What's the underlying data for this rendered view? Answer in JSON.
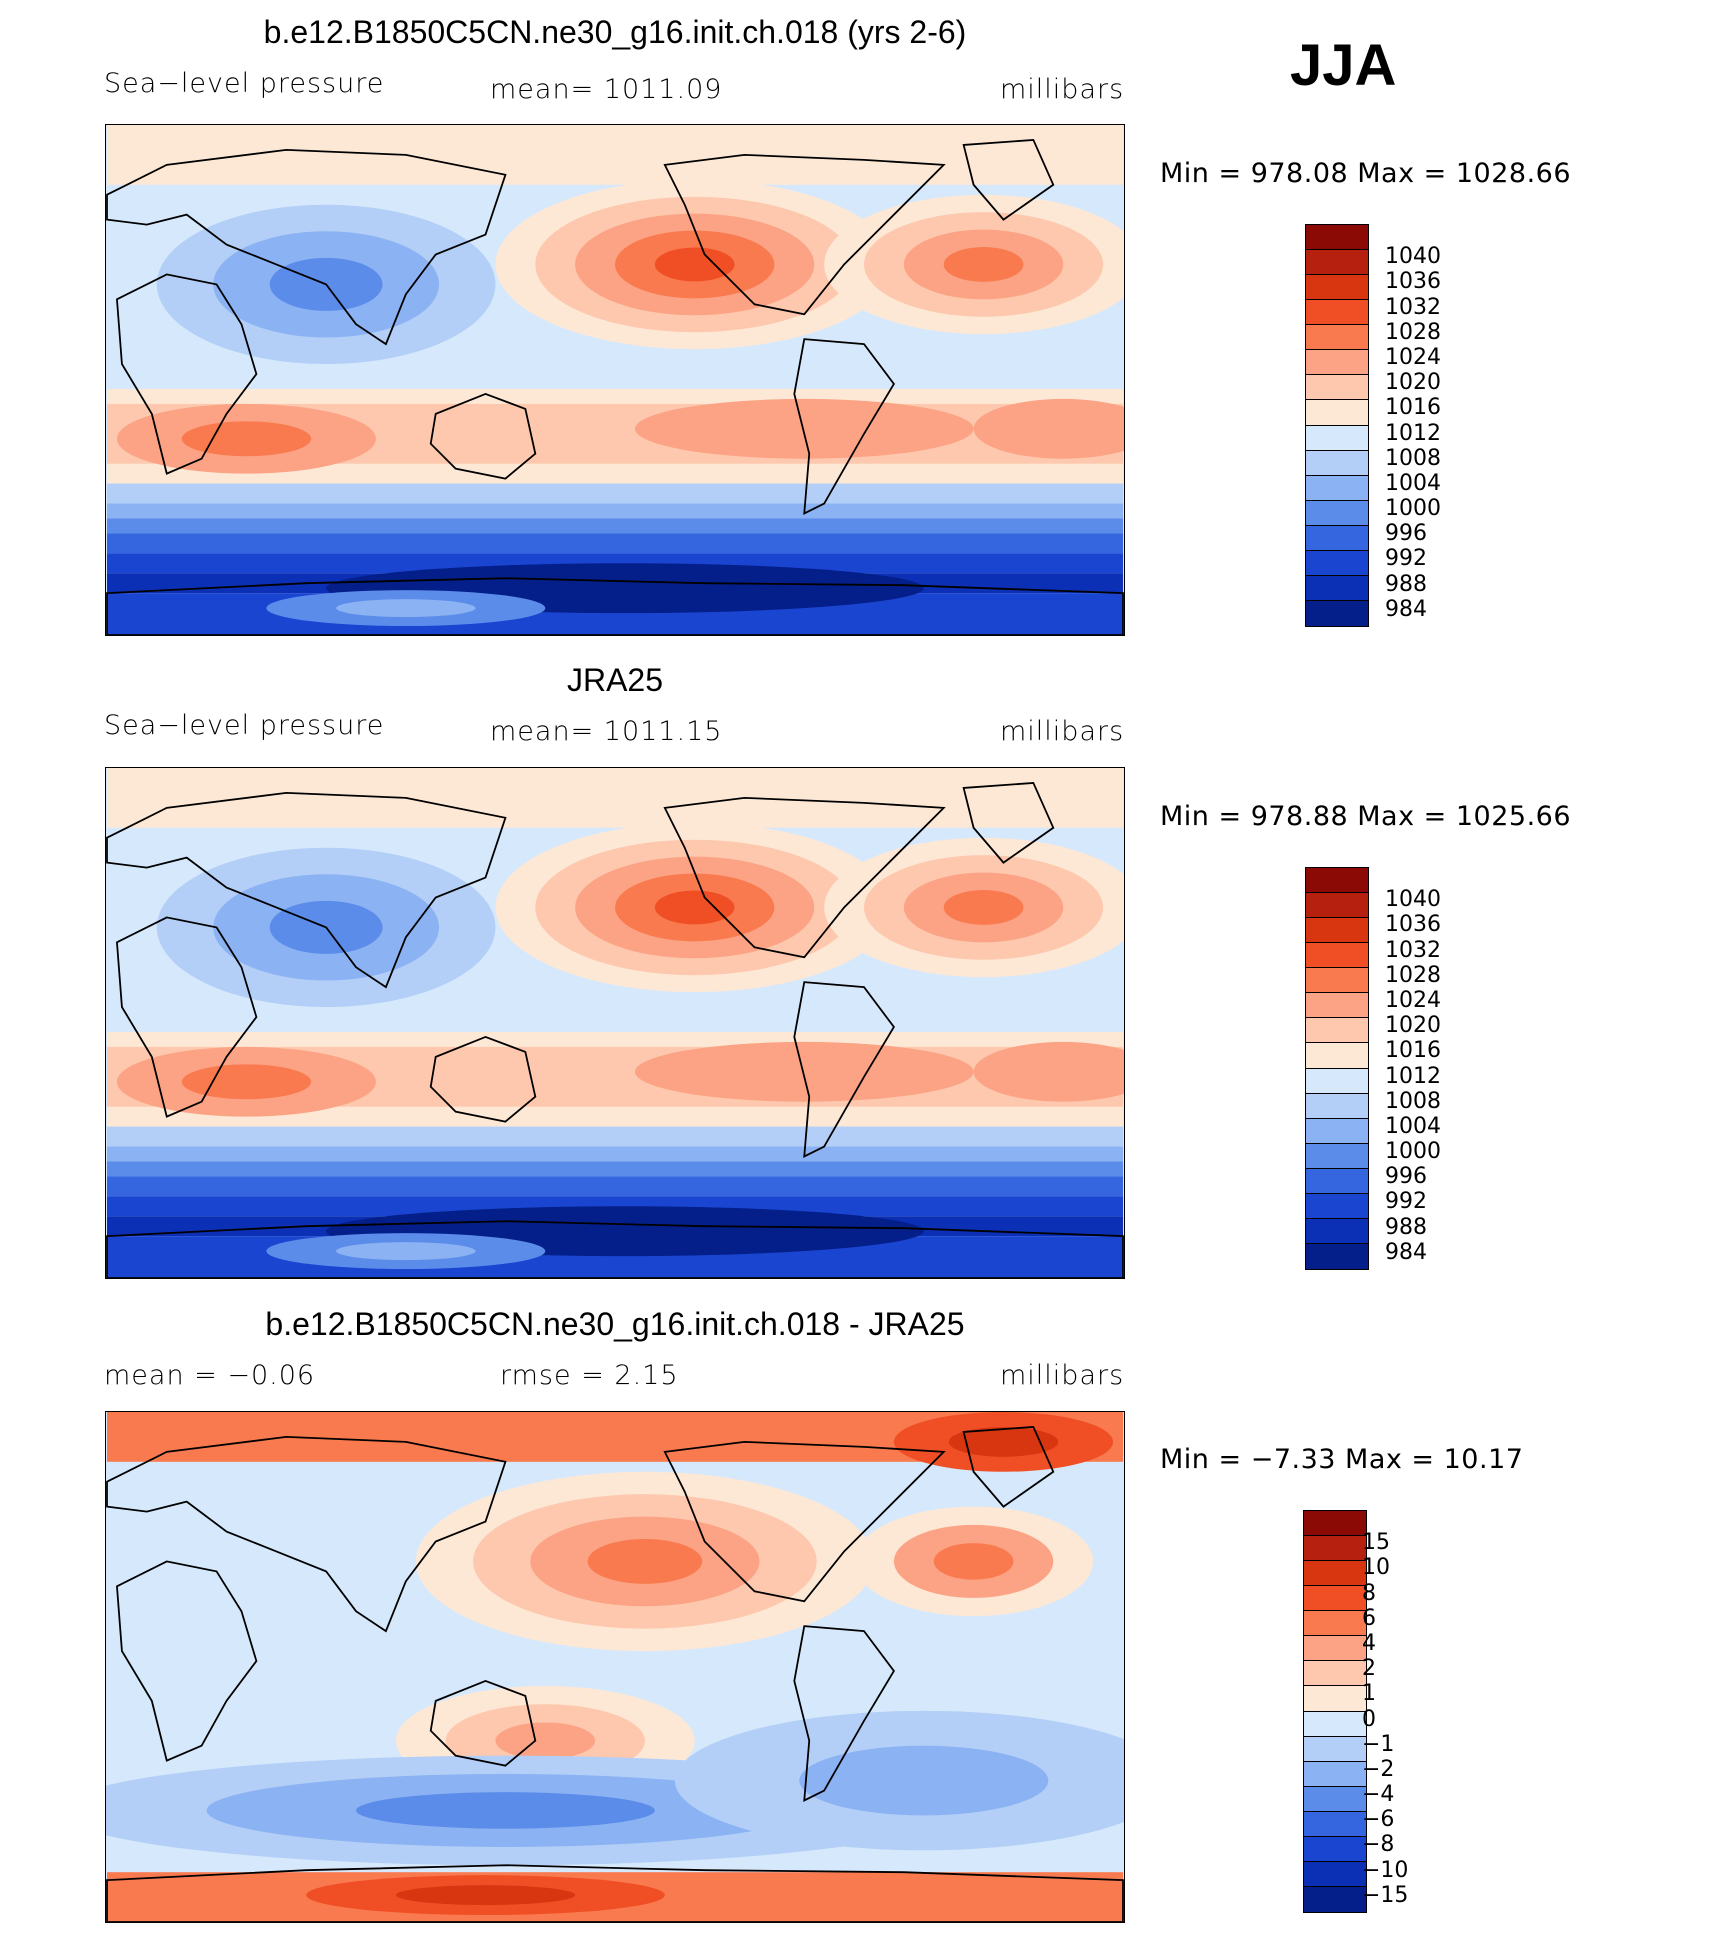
{
  "season": "JJA",
  "panels": [
    {
      "title": "b.e12.B1850C5CN.ne30_g16.init.ch.018 (yrs 2-6)",
      "left": "Sea−level pressure",
      "center": "mean=  1011.09",
      "right": "millibars",
      "minmax": "Min  =  978.08  Max  =  1028.66",
      "kind": "abs",
      "colorbar": {
        "labels": [
          "1040",
          "1036",
          "1032",
          "1028",
          "1024",
          "1020",
          "1016",
          "1012",
          "1008",
          "1004",
          "1000",
          "996",
          "992",
          "988",
          "984"
        ],
        "colors": [
          "#8b0a06",
          "#b5200f",
          "#d83611",
          "#f04f25",
          "#f97a4f",
          "#fba384",
          "#fdc8ad",
          "#fde8d6",
          "#d6e8fb",
          "#b3cff7",
          "#8bb2f2",
          "#5c8cea",
          "#3566e0",
          "#1a45d1",
          "#0b2fb5",
          "#041f8a"
        ]
      }
    },
    {
      "title": "JRA25",
      "left": "Sea−level pressure",
      "center": "mean=  1011.15",
      "right": "millibars",
      "minmax": "Min  =  978.88  Max  =  1025.66",
      "kind": "abs",
      "colorbar": {
        "labels": [
          "1040",
          "1036",
          "1032",
          "1028",
          "1024",
          "1020",
          "1016",
          "1012",
          "1008",
          "1004",
          "1000",
          "996",
          "992",
          "988",
          "984"
        ],
        "colors": [
          "#8b0a06",
          "#b5200f",
          "#d83611",
          "#f04f25",
          "#f97a4f",
          "#fba384",
          "#fdc8ad",
          "#fde8d6",
          "#d6e8fb",
          "#b3cff7",
          "#8bb2f2",
          "#5c8cea",
          "#3566e0",
          "#1a45d1",
          "#0b2fb5",
          "#041f8a"
        ]
      }
    },
    {
      "title": "b.e12.B1850C5CN.ne30_g16.init.ch.018 - JRA25",
      "left": "mean  =     −0.06",
      "center": "rmse  =      2.15",
      "right": "millibars",
      "minmax": "Min  =    −7.33  Max  =     10.17",
      "kind": "diff",
      "colorbar": {
        "labels": [
          "15",
          "10",
          "8",
          "6",
          "4",
          "2",
          "1",
          "0",
          "−1",
          "−2",
          "−4",
          "−6",
          "−8",
          "−10",
          "−15"
        ],
        "colors": [
          "#8b0a06",
          "#b5200f",
          "#d83611",
          "#f04f25",
          "#f97a4f",
          "#fba384",
          "#fdc8ad",
          "#fde8d6",
          "#d6e8fb",
          "#b3cff7",
          "#8bb2f2",
          "#5c8cea",
          "#3566e0",
          "#1a45d1",
          "#0b2fb5",
          "#041f8a"
        ]
      }
    }
  ]
}
